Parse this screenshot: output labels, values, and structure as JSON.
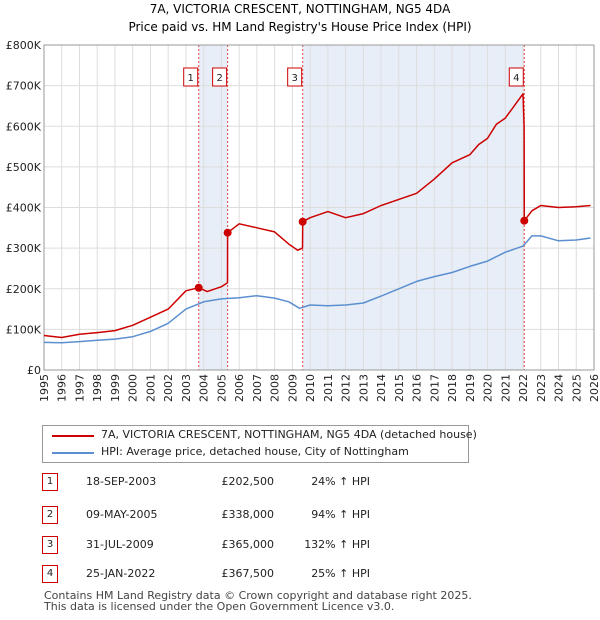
{
  "chart_data": {
    "type": "line",
    "title": "7A, VICTORIA CRESCENT, NOTTINGHAM, NG5 4DA",
    "subtitle": "Price paid vs. HM Land Registry's House Price Index (HPI)",
    "xlim": [
      1995,
      2026
    ],
    "ylim": [
      0,
      800000
    ],
    "y_ticks": [
      0,
      100000,
      200000,
      300000,
      400000,
      500000,
      600000,
      700000,
      800000
    ],
    "y_tick_labels": [
      "£0",
      "£100K",
      "£200K",
      "£300K",
      "£400K",
      "£500K",
      "£600K",
      "£700K",
      "£800K"
    ],
    "x_ticks": [
      1995,
      1996,
      1997,
      1998,
      1999,
      2000,
      2001,
      2002,
      2003,
      2004,
      2005,
      2006,
      2007,
      2008,
      2009,
      2010,
      2011,
      2012,
      2013,
      2014,
      2015,
      2016,
      2017,
      2018,
      2019,
      2020,
      2021,
      2022,
      2023,
      2024,
      2025,
      2026
    ],
    "x_tick_labels": [
      "1995",
      "1996",
      "1997",
      "1998",
      "1999",
      "2000",
      "2001",
      "2002",
      "2003",
      "2004",
      "2005",
      "2006",
      "2007",
      "2008",
      "2009",
      "2010",
      "2011",
      "2012",
      "2013",
      "2014",
      "2015",
      "2016",
      "2017",
      "2018",
      "2019",
      "2020",
      "2021",
      "2022",
      "2023",
      "2024",
      "2025",
      "2026"
    ],
    "shaded_ranges": [
      [
        2003.72,
        2005.35
      ],
      [
        2009.58,
        2022.07
      ]
    ],
    "series": [
      {
        "name": "7A, VICTORIA CRESCENT, NOTTINGHAM, NG5 4DA (detached house)",
        "color": "#cc0000",
        "x": [
          1995.0,
          1996.0,
          1997.0,
          1998.0,
          1999.0,
          2000.0,
          2001.0,
          2002.0,
          2003.0,
          2003.72,
          2004.2,
          2005.0,
          2005.34,
          2005.35,
          2006.0,
          2007.0,
          2008.0,
          2008.8,
          2009.3,
          2009.57,
          2009.58,
          2010.0,
          2011.0,
          2012.0,
          2013.0,
          2014.0,
          2015.0,
          2016.0,
          2017.0,
          2018.0,
          2019.0,
          2019.5,
          2020.0,
          2020.5,
          2021.0,
          2021.5,
          2022.0,
          2022.06,
          2022.07,
          2022.5,
          2023.0,
          2024.0,
          2025.0,
          2025.8
        ],
        "y": [
          85000,
          80000,
          88000,
          92000,
          97000,
          110000,
          130000,
          150000,
          195000,
          202500,
          193000,
          205000,
          215000,
          338000,
          360000,
          350000,
          340000,
          310000,
          295000,
          300000,
          365000,
          375000,
          390000,
          375000,
          385000,
          405000,
          420000,
          435000,
          470000,
          510000,
          530000,
          555000,
          570000,
          605000,
          620000,
          650000,
          680000,
          600000,
          367500,
          392000,
          405000,
          400000,
          402000,
          405000
        ]
      },
      {
        "name": "HPI: Average price, detached house, City of Nottingham",
        "color": "#5b8fd0",
        "x": [
          1995.0,
          1996.0,
          1997.0,
          1998.0,
          1999.0,
          2000.0,
          2001.0,
          2002.0,
          2003.0,
          2004.0,
          2005.0,
          2006.0,
          2007.0,
          2008.0,
          2008.8,
          2009.4,
          2010.0,
          2011.0,
          2012.0,
          2013.0,
          2014.0,
          2015.0,
          2016.0,
          2017.0,
          2018.0,
          2019.0,
          2020.0,
          2021.0,
          2022.0,
          2022.5,
          2023.0,
          2024.0,
          2025.0,
          2025.8
        ],
        "y": [
          68000,
          67000,
          70000,
          73000,
          76000,
          82000,
          95000,
          115000,
          150000,
          168000,
          175000,
          178000,
          183000,
          177000,
          168000,
          152000,
          160000,
          158000,
          160000,
          165000,
          182000,
          200000,
          218000,
          230000,
          240000,
          255000,
          268000,
          290000,
          305000,
          330000,
          330000,
          318000,
          320000,
          325000
        ]
      }
    ],
    "sales": [
      {
        "label": "1",
        "x": 2003.72,
        "y": 202500
      },
      {
        "label": "2",
        "x": 2005.35,
        "y": 338000
      },
      {
        "label": "3",
        "x": 2009.58,
        "y": 365000
      },
      {
        "label": "4",
        "x": 2022.07,
        "y": 367500
      }
    ]
  },
  "legend": {
    "property_label": "7A, VICTORIA CRESCENT, NOTTINGHAM, NG5 4DA (detached house)",
    "hpi_label": "HPI: Average price, detached house, City of Nottingham"
  },
  "transactions": [
    {
      "num": "1",
      "date": "18-SEP-2003",
      "price": "£202,500",
      "hpi": "24% ↑ HPI"
    },
    {
      "num": "2",
      "date": "09-MAY-2005",
      "price": "£338,000",
      "hpi": "94% ↑ HPI"
    },
    {
      "num": "3",
      "date": "31-JUL-2009",
      "price": "£365,000",
      "hpi": "132% ↑ HPI"
    },
    {
      "num": "4",
      "date": "25-JAN-2022",
      "price": "£367,500",
      "hpi": "25% ↑ HPI"
    }
  ],
  "footer": {
    "line1": "Contains HM Land Registry data © Crown copyright and database right 2025.",
    "line2": "This data is licensed under the Open Government Licence v3.0."
  },
  "colors": {
    "property": "#cc0000",
    "hpi": "#5b8fd0",
    "shade": "#e8eef8"
  }
}
